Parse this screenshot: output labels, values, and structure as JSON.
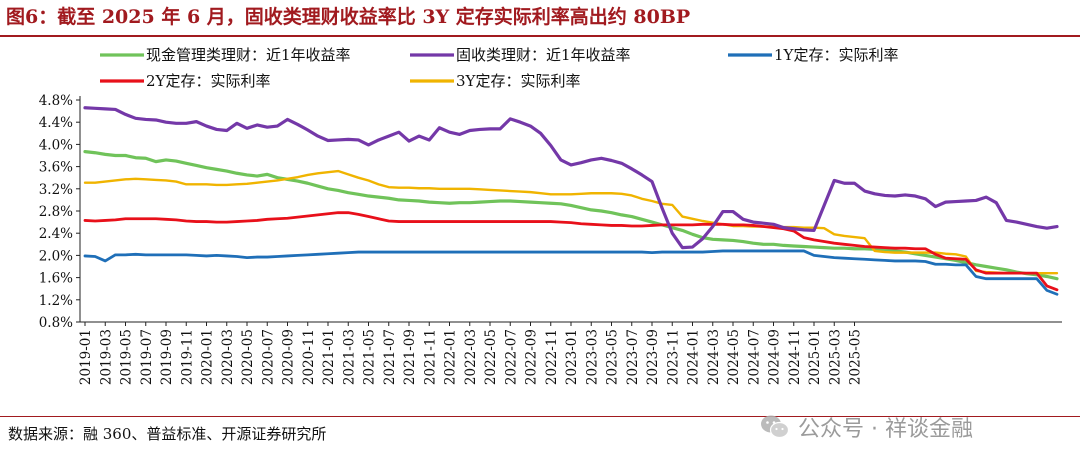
{
  "header": {
    "title": "图6：截至 2025 年 6 月，固收类理财收益率比 3Y 定存实际利率高出约 80BP"
  },
  "footer": {
    "source": "数据来源：融 360、普益标准、开源证券研究所",
    "watermark": "公众号 · 祥谈金融"
  },
  "chart_data": {
    "type": "line",
    "title": "截至 2025 年 6 月，固收类理财收益率比 3Y 定存实际利率高出约 80BP",
    "xlabel": "",
    "ylabel": "",
    "ylim": [
      0.8,
      4.8
    ],
    "yticks": [
      "0.8%",
      "1.2%",
      "1.6%",
      "2.0%",
      "2.4%",
      "2.8%",
      "3.2%",
      "3.6%",
      "4.0%",
      "4.4%",
      "4.8%"
    ],
    "xticks": [
      "2019-01",
      "2019-03",
      "2019-05",
      "2019-07",
      "2019-09",
      "2019-11",
      "2020-01",
      "2020-03",
      "2020-05",
      "2020-07",
      "2020-09",
      "2020-11",
      "2021-01",
      "2021-03",
      "2021-05",
      "2021-07",
      "2021-09",
      "2021-11",
      "2022-01",
      "2022-03",
      "2022-05",
      "2022-07",
      "2022-09",
      "2022-11",
      "2023-01",
      "2023-03",
      "2023-05",
      "2023-07",
      "2023-09",
      "2023-11",
      "2024-01",
      "2024-03",
      "2024-05",
      "2024-07",
      "2024-09",
      "2024-11",
      "2025-01",
      "2025-03",
      "2025-05"
    ],
    "legend_position": "top",
    "colors": {
      "cash": "#70c35a",
      "fixed": "#7438a8",
      "d1y": "#1f6fb8",
      "d2y": "#e8101a",
      "d3y": "#f0b400"
    },
    "series": [
      {
        "key": "cash",
        "name": "现金管理类理财：近1年收益率",
        "values": [
          3.87,
          3.85,
          3.82,
          3.8,
          3.8,
          3.76,
          3.75,
          3.69,
          3.72,
          3.7,
          3.66,
          3.62,
          3.58,
          3.55,
          3.52,
          3.48,
          3.45,
          3.43,
          3.46,
          3.4,
          3.37,
          3.34,
          3.3,
          3.25,
          3.2,
          3.17,
          3.13,
          3.1,
          3.07,
          3.05,
          3.03,
          3.0,
          2.99,
          2.98,
          2.96,
          2.95,
          2.94,
          2.95,
          2.95,
          2.96,
          2.97,
          2.98,
          2.98,
          2.97,
          2.96,
          2.95,
          2.94,
          2.93,
          2.9,
          2.86,
          2.82,
          2.8,
          2.77,
          2.73,
          2.7,
          2.65,
          2.6,
          2.55,
          2.5,
          2.45,
          2.38,
          2.32,
          2.29,
          2.28,
          2.27,
          2.25,
          2.22,
          2.2,
          2.2,
          2.18,
          2.17,
          2.16,
          2.15,
          2.14,
          2.13,
          2.13,
          2.12,
          2.12,
          2.11,
          2.1,
          2.08,
          2.06,
          2.03,
          2.0,
          1.97,
          1.94,
          1.91,
          1.87,
          1.83,
          1.8,
          1.77,
          1.74,
          1.7,
          1.67,
          1.65,
          1.62,
          1.58
        ]
      },
      {
        "key": "fixed",
        "name": "固收类理财：近1年收益率",
        "values": [
          4.66,
          4.65,
          4.64,
          4.63,
          4.54,
          4.47,
          4.45,
          4.44,
          4.4,
          4.38,
          4.38,
          4.41,
          4.33,
          4.27,
          4.25,
          4.38,
          4.29,
          4.35,
          4.31,
          4.33,
          4.45,
          4.36,
          4.26,
          4.15,
          4.07,
          4.08,
          4.09,
          4.08,
          3.99,
          4.08,
          4.15,
          4.22,
          4.06,
          4.15,
          4.08,
          4.3,
          4.22,
          4.18,
          4.25,
          4.27,
          4.28,
          4.28,
          4.46,
          4.4,
          4.33,
          4.2,
          3.98,
          3.72,
          3.63,
          3.67,
          3.72,
          3.75,
          3.71,
          3.66,
          3.56,
          3.45,
          3.33,
          2.85,
          2.4,
          2.14,
          2.15,
          2.3,
          2.52,
          2.79,
          2.79,
          2.65,
          2.6,
          2.58,
          2.56,
          2.5,
          2.48,
          2.46,
          2.45,
          2.9,
          3.35,
          3.3,
          3.3,
          3.16,
          3.11,
          3.08,
          3.07,
          3.09,
          3.07,
          3.02,
          2.88,
          2.96,
          2.97,
          2.98,
          2.99,
          3.05,
          2.95,
          2.63,
          2.6,
          2.56,
          2.52,
          2.49,
          2.52
        ]
      },
      {
        "key": "d1y",
        "name": "1Y定存：实际利率",
        "values": [
          1.99,
          1.98,
          1.9,
          2.01,
          2.01,
          2.02,
          2.01,
          2.01,
          2.01,
          2.01,
          2.01,
          2.0,
          1.99,
          2.0,
          1.99,
          1.98,
          1.96,
          1.97,
          1.97,
          1.98,
          1.99,
          2.0,
          2.01,
          2.02,
          2.03,
          2.04,
          2.05,
          2.06,
          2.06,
          2.06,
          2.06,
          2.06,
          2.06,
          2.06,
          2.06,
          2.06,
          2.06,
          2.06,
          2.06,
          2.06,
          2.06,
          2.06,
          2.06,
          2.06,
          2.06,
          2.06,
          2.06,
          2.06,
          2.06,
          2.06,
          2.06,
          2.06,
          2.06,
          2.06,
          2.06,
          2.06,
          2.05,
          2.06,
          2.06,
          2.06,
          2.06,
          2.06,
          2.07,
          2.08,
          2.08,
          2.08,
          2.08,
          2.08,
          2.08,
          2.08,
          2.08,
          2.08,
          2.0,
          1.98,
          1.96,
          1.95,
          1.94,
          1.93,
          1.92,
          1.91,
          1.9,
          1.9,
          1.9,
          1.89,
          1.84,
          1.84,
          1.83,
          1.83,
          1.62,
          1.58,
          1.58,
          1.58,
          1.58,
          1.58,
          1.58,
          1.37,
          1.3
        ]
      },
      {
        "key": "d2y",
        "name": "2Y定存：实际利率",
        "values": [
          2.63,
          2.62,
          2.63,
          2.64,
          2.66,
          2.66,
          2.66,
          2.66,
          2.65,
          2.64,
          2.62,
          2.61,
          2.61,
          2.6,
          2.6,
          2.61,
          2.62,
          2.63,
          2.65,
          2.66,
          2.67,
          2.69,
          2.71,
          2.73,
          2.75,
          2.77,
          2.77,
          2.74,
          2.7,
          2.66,
          2.62,
          2.61,
          2.61,
          2.61,
          2.61,
          2.61,
          2.61,
          2.61,
          2.61,
          2.61,
          2.61,
          2.61,
          2.61,
          2.61,
          2.61,
          2.61,
          2.61,
          2.6,
          2.59,
          2.57,
          2.56,
          2.55,
          2.54,
          2.54,
          2.53,
          2.53,
          2.54,
          2.55,
          2.55,
          2.55,
          2.55,
          2.56,
          2.56,
          2.56,
          2.55,
          2.55,
          2.54,
          2.52,
          2.5,
          2.48,
          2.44,
          2.32,
          2.28,
          2.25,
          2.22,
          2.2,
          2.18,
          2.16,
          2.15,
          2.14,
          2.13,
          2.13,
          2.12,
          2.12,
          2.02,
          1.95,
          1.94,
          1.93,
          1.74,
          1.68,
          1.68,
          1.68,
          1.68,
          1.68,
          1.68,
          1.45,
          1.38
        ]
      },
      {
        "key": "d3y",
        "name": "3Y定存：实际利率",
        "values": [
          3.31,
          3.31,
          3.33,
          3.35,
          3.37,
          3.38,
          3.37,
          3.36,
          3.35,
          3.33,
          3.28,
          3.28,
          3.28,
          3.27,
          3.27,
          3.28,
          3.29,
          3.31,
          3.33,
          3.35,
          3.38,
          3.41,
          3.45,
          3.48,
          3.5,
          3.52,
          3.46,
          3.4,
          3.35,
          3.28,
          3.23,
          3.22,
          3.22,
          3.21,
          3.21,
          3.2,
          3.2,
          3.2,
          3.2,
          3.19,
          3.18,
          3.17,
          3.16,
          3.15,
          3.14,
          3.12,
          3.1,
          3.1,
          3.1,
          3.11,
          3.12,
          3.12,
          3.12,
          3.11,
          3.08,
          3.02,
          2.98,
          2.93,
          2.91,
          2.7,
          2.66,
          2.62,
          2.59,
          2.56,
          2.53,
          2.53,
          2.52,
          2.52,
          2.52,
          2.51,
          2.51,
          2.5,
          2.5,
          2.49,
          2.38,
          2.35,
          2.33,
          2.31,
          2.08,
          2.06,
          2.05,
          2.05,
          2.05,
          2.05,
          2.05,
          2.03,
          2.02,
          1.98,
          1.72,
          1.7,
          1.69,
          1.68,
          1.68,
          1.68,
          1.68,
          1.68,
          1.68
        ]
      }
    ]
  }
}
